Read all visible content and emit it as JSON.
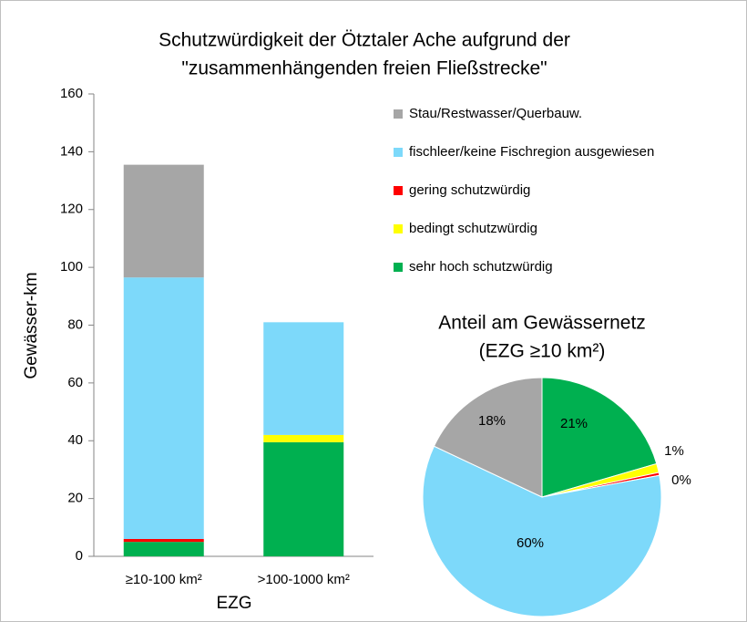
{
  "chart_data": [
    {
      "type": "bar",
      "title": [
        "Schutzwürdigkeit der Ötztaler Ache aufgrund der",
        "\"zusammenhängenden freien Fließstrecke\""
      ],
      "categories": [
        "≥10-100 km²",
        ">100-1000 km²"
      ],
      "x_label": "EZG",
      "y_label": "Gewässer-km",
      "series": [
        {
          "name": "Stau/Restwasser/Querbauw.",
          "color": "#a6a6a6",
          "values": [
            39,
            0
          ]
        },
        {
          "name": "fischleer/keine Fischregion ausgewiesen",
          "color": "#7dd9fa",
          "values": [
            90.5,
            39
          ]
        },
        {
          "name": "gering schutzwürdig",
          "color": "#ff0000",
          "values": [
            1,
            0
          ]
        },
        {
          "name": "bedingt schutzwürdig",
          "color": "#ffff00",
          "values": [
            0,
            2.5
          ]
        },
        {
          "name": "sehr hoch schutzwürdig",
          "color": "#00b050",
          "values": [
            5,
            39.5
          ]
        }
      ],
      "stacked": true,
      "ylim": [
        0,
        160
      ],
      "yticks": [
        0,
        20,
        40,
        60,
        80,
        100,
        120,
        140,
        160
      ],
      "grid": false,
      "legend": "right"
    },
    {
      "type": "pie",
      "title": [
        "Anteil am Gewässernetz",
        "(EZG ≥10 km²)"
      ],
      "values": [
        20.5,
        1.2,
        0.4,
        59.9,
        18.0
      ],
      "value_labels": [
        "21%",
        "1%",
        "0%",
        "60%",
        "18%"
      ],
      "colors": [
        "#00b050",
        "#ffff00",
        "#ff0000",
        "#7dd9fa",
        "#a6a6a6"
      ]
    }
  ]
}
